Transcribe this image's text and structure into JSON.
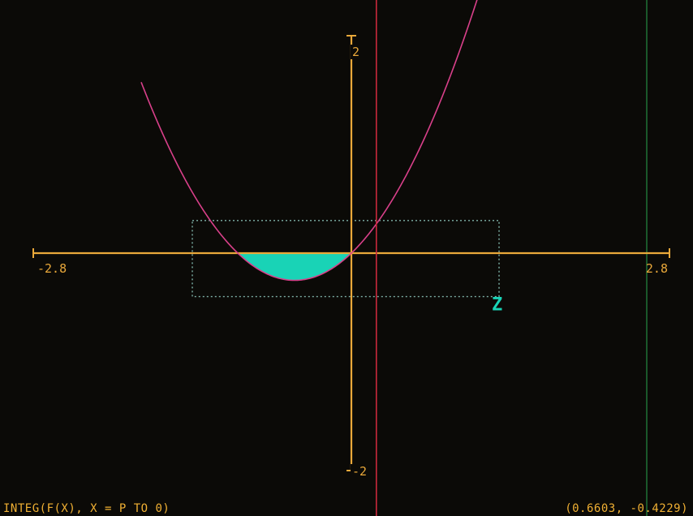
{
  "screen": {
    "background": "#0b0a07",
    "status_text": "INTEG(F(X), X = P TO 0)",
    "cursor_readout": "(0.6603, -0.4229)"
  },
  "chart_data": {
    "type": "line",
    "function": "y = x^2 + x",
    "x_range": [
      -2.8,
      2.8
    ],
    "y_range": [
      -2,
      2
    ],
    "tick_labels": {
      "x_min": "-2.8",
      "x_max": "2.8",
      "y_max": "2",
      "y_min": "-2"
    },
    "series": [
      {
        "color": "#d9408a",
        "points": [
          [
            -1.5,
            0.75
          ],
          [
            -1.25,
            0.3125
          ],
          [
            -1.0,
            0.0
          ],
          [
            -0.75,
            -0.1875
          ],
          [
            -0.5,
            -0.25
          ],
          [
            -0.25,
            -0.1875
          ],
          [
            0.0,
            0.0
          ],
          [
            0.25,
            0.3125
          ],
          [
            0.5,
            0.75
          ],
          [
            0.75,
            1.3125
          ],
          [
            1.0,
            2.0
          ],
          [
            1.15,
            2.4725
          ]
        ]
      }
    ],
    "shaded_integral": {
      "from": -1.0,
      "to": 0.0,
      "color": "#19d3b6"
    },
    "zoom_box": {
      "x": [
        -1.4,
        1.3
      ],
      "y": [
        -0.4,
        0.3
      ],
      "label": "Z",
      "color": "#7fb2a8"
    },
    "cursor": {
      "x": 0.22,
      "color": "#c8283c"
    },
    "guide_lines": {
      "x": [
        -3.5,
        2.6
      ],
      "color": "#1f6b34"
    },
    "axis_color": "#e9a83a"
  }
}
